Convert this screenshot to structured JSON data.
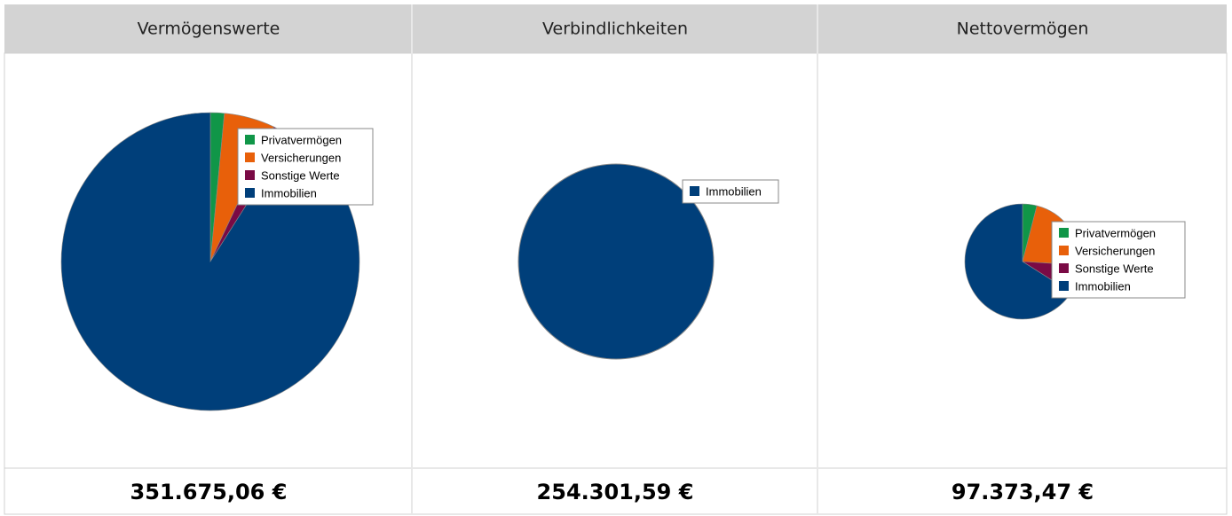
{
  "chart_data": [
    {
      "type": "pie",
      "title": "Vermögenswerte",
      "labels": [
        "Privatvermögen",
        "Versicherungen",
        "Sonstige Werte",
        "Immobilien"
      ],
      "values": [
        1.5,
        5.5,
        2,
        91
      ],
      "colors": [
        "#109648",
        "#e8600a",
        "#7a0a45",
        "#003f7a"
      ],
      "total": "351.675,06 €"
    },
    {
      "type": "pie",
      "title": "Verbindlichkeiten",
      "labels": [
        "Immobilien"
      ],
      "values": [
        100
      ],
      "colors": [
        "#003f7a"
      ],
      "total": "254.301,59 €"
    },
    {
      "type": "pie",
      "title": "Nettovermögen",
      "labels": [
        "Privatvermögen",
        "Versicherungen",
        "Sonstige Werte",
        "Immobilien"
      ],
      "values": [
        4,
        22,
        8,
        66
      ],
      "colors": [
        "#109648",
        "#e8600a",
        "#7a0a45",
        "#003f7a"
      ],
      "total": "97.373,47 €"
    }
  ]
}
